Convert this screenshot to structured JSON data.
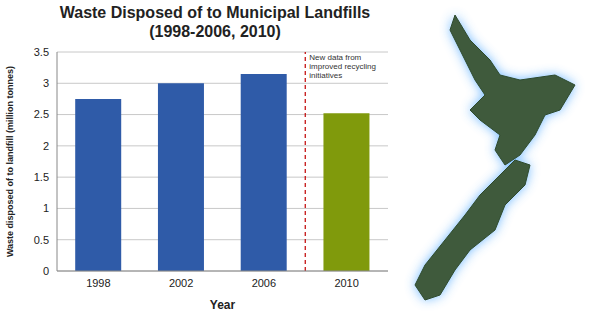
{
  "chart_data": {
    "type": "bar",
    "title": "Waste Disposed of to Municipal Landfills (1998-2006, 2010)",
    "x_label": "Year",
    "y_label": "Waste disposed of to landfill (million tonnes)",
    "categories": [
      "1998",
      "2002",
      "2006",
      "2010"
    ],
    "values": [
      2.75,
      3.0,
      3.15,
      2.52
    ],
    "colors": [
      "#2F5BA8",
      "#2F5BA8",
      "#2F5BA8",
      "#809A0C"
    ],
    "ylim": [
      0,
      3.5
    ],
    "yticks": [
      0,
      0.5,
      1,
      1.5,
      2,
      2.5,
      3,
      3.5
    ],
    "grid": true,
    "annotations": [
      {
        "text": "New data from improved recycling initiatives",
        "x": "2010"
      }
    ]
  }
}
